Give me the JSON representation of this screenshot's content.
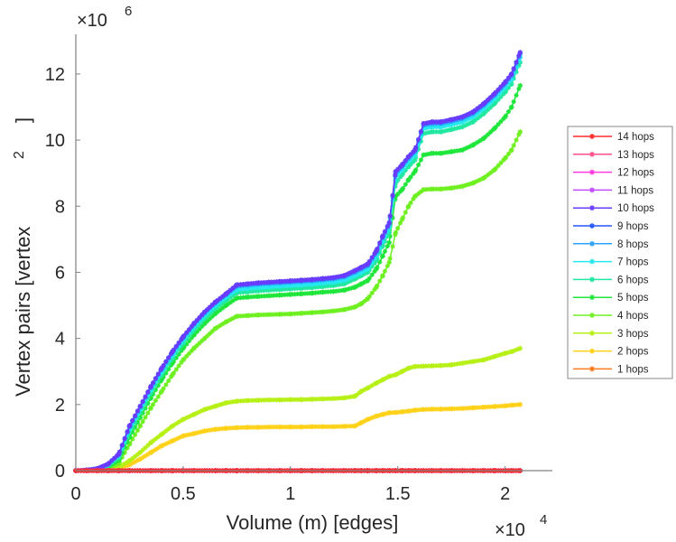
{
  "chart_data": {
    "type": "line",
    "title": "",
    "xlabel": "Volume (m) [edges]",
    "ylabel": "Vertex pairs [vertex",
    "ylabel_superscript": "2",
    "ylabel_close": "]",
    "x_exponent_label": "×10",
    "x_exponent": "4",
    "y_exponent_label": "×10",
    "y_exponent": "6",
    "xlim": [
      0,
      22200
    ],
    "ylim": [
      0,
      13200000
    ],
    "x_ticks": [
      0,
      5000,
      10000,
      15000,
      20000
    ],
    "x_tick_labels": [
      "0",
      "0.5",
      "1",
      "1.5",
      "2"
    ],
    "y_ticks": [
      0,
      2000000,
      4000000,
      6000000,
      8000000,
      10000000,
      12000000
    ],
    "y_tick_labels": [
      "0",
      "2",
      "4",
      "6",
      "8",
      "10",
      "12"
    ],
    "grid": false,
    "legend_position": "right-outside",
    "marker": "asterisk",
    "x": [
      0,
      500,
      1000,
      1500,
      2000,
      2500,
      3000,
      3500,
      4000,
      4500,
      5000,
      5500,
      6000,
      6500,
      7000,
      7500,
      8000,
      8500,
      9000,
      9500,
      10000,
      10500,
      11000,
      11500,
      12000,
      12500,
      13000,
      13300,
      13600,
      14000,
      14300,
      14600,
      14900,
      15200,
      15500,
      15800,
      16200,
      16600,
      17000,
      17500,
      18000,
      18500,
      19000,
      19500,
      20000,
      20300,
      20700
    ],
    "series": [
      {
        "name": "14 hops",
        "color": "#ff2b2b",
        "values": [
          0,
          0,
          0,
          0,
          0,
          0,
          0,
          0,
          0,
          0,
          0,
          0,
          0,
          0,
          0,
          0,
          0,
          0,
          0,
          0,
          0,
          0,
          0,
          0,
          0,
          0,
          0,
          0,
          0,
          0,
          0,
          0,
          0,
          0,
          0,
          0,
          0,
          0,
          0,
          0,
          0,
          0,
          0,
          0,
          0,
          0,
          0
        ]
      },
      {
        "name": "13 hops",
        "color": "#ff4f8a",
        "values": [
          0,
          0,
          0,
          0,
          0,
          0,
          0,
          0,
          0,
          0,
          0,
          0,
          0,
          0,
          0,
          0,
          0,
          0,
          0,
          0,
          0,
          0,
          0,
          0,
          0,
          0,
          0,
          0,
          0,
          0,
          0,
          0,
          0,
          0,
          0,
          0,
          0,
          0,
          0,
          0,
          0,
          0,
          0,
          0,
          0,
          0,
          0
        ]
      },
      {
        "name": "12 hops",
        "color": "#ff3be0",
        "values": [
          0,
          0,
          0,
          0,
          0,
          0,
          0,
          0,
          0,
          0,
          0,
          0,
          0,
          0,
          0,
          0,
          0,
          0,
          0,
          0,
          0,
          0,
          0,
          0,
          0,
          0,
          0,
          0,
          0,
          0,
          0,
          0,
          0,
          0,
          0,
          0,
          0,
          0,
          0,
          0,
          0,
          0,
          0,
          0,
          0,
          0,
          0
        ]
      },
      {
        "name": "11 hops",
        "color": "#c04bff",
        "values": [
          0,
          0,
          0,
          0,
          0,
          0,
          0,
          0,
          0,
          0,
          0,
          0,
          0,
          0,
          0,
          0,
          0,
          0,
          0,
          0,
          0,
          0,
          0,
          0,
          0,
          0,
          0,
          0,
          0,
          0,
          0,
          0,
          0,
          0,
          0,
          0,
          0,
          0,
          0,
          0,
          0,
          0,
          0,
          0,
          0,
          0,
          0
        ]
      },
      {
        "name": "10 hops",
        "color": "#6a3bff",
        "values": [
          0,
          20000,
          60000,
          200000,
          500000,
          1350000,
          1950000,
          2550000,
          3100000,
          3600000,
          4050000,
          4450000,
          4800000,
          5100000,
          5350000,
          5620000,
          5650000,
          5680000,
          5700000,
          5720000,
          5740000,
          5760000,
          5780000,
          5810000,
          5840000,
          5900000,
          6050000,
          6150000,
          6250000,
          6650000,
          7100000,
          7500000,
          9050000,
          9250000,
          9500000,
          9700000,
          10500000,
          10550000,
          10550000,
          10620000,
          10700000,
          10850000,
          11100000,
          11400000,
          11750000,
          12000000,
          12650000
        ]
      },
      {
        "name": "9 hops",
        "color": "#2456ff",
        "values": [
          0,
          20000,
          60000,
          200000,
          500000,
          1350000,
          1950000,
          2550000,
          3100000,
          3600000,
          4050000,
          4450000,
          4800000,
          5100000,
          5350000,
          5620000,
          5650000,
          5680000,
          5700000,
          5720000,
          5740000,
          5760000,
          5780000,
          5810000,
          5840000,
          5900000,
          6050000,
          6150000,
          6250000,
          6650000,
          7100000,
          7500000,
          9050000,
          9250000,
          9500000,
          9700000,
          10500000,
          10550000,
          10550000,
          10620000,
          10700000,
          10850000,
          11100000,
          11400000,
          11750000,
          12000000,
          12650000
        ]
      },
      {
        "name": "8 hops",
        "color": "#2aa3ff",
        "values": [
          0,
          20000,
          60000,
          195000,
          490000,
          1320000,
          1920000,
          2520000,
          3070000,
          3570000,
          4020000,
          4420000,
          4770000,
          5070000,
          5320000,
          5580000,
          5610000,
          5640000,
          5660000,
          5680000,
          5700000,
          5720000,
          5740000,
          5770000,
          5800000,
          5860000,
          6000000,
          6100000,
          6200000,
          6600000,
          7050000,
          7450000,
          9000000,
          9200000,
          9450000,
          9650000,
          10450000,
          10500000,
          10500000,
          10570000,
          10650000,
          10800000,
          11050000,
          11350000,
          11700000,
          11950000,
          12600000
        ]
      },
      {
        "name": "7 hops",
        "color": "#25e8f0",
        "values": [
          0,
          15000,
          50000,
          180000,
          450000,
          1250000,
          1850000,
          2450000,
          3000000,
          3500000,
          3950000,
          4350000,
          4700000,
          5000000,
          5250000,
          5480000,
          5510000,
          5540000,
          5560000,
          5580000,
          5600000,
          5620000,
          5640000,
          5670000,
          5700000,
          5760000,
          5900000,
          6000000,
          6100000,
          6500000,
          6950000,
          7350000,
          8900000,
          9100000,
          9350000,
          9550000,
          10350000,
          10400000,
          10400000,
          10470000,
          10550000,
          10700000,
          10950000,
          11250000,
          11600000,
          11850000,
          12500000
        ]
      },
      {
        "name": "6 hops",
        "color": "#20e8a0",
        "values": [
          0,
          12000,
          45000,
          160000,
          400000,
          1150000,
          1750000,
          2350000,
          2900000,
          3400000,
          3850000,
          4250000,
          4600000,
          4900000,
          5150000,
          5380000,
          5410000,
          5440000,
          5460000,
          5480000,
          5500000,
          5520000,
          5540000,
          5570000,
          5600000,
          5650000,
          5800000,
          5900000,
          6000000,
          6350000,
          6800000,
          7200000,
          8700000,
          8950000,
          9200000,
          9400000,
          10200000,
          10250000,
          10250000,
          10320000,
          10400000,
          10550000,
          10800000,
          11100000,
          11450000,
          11700000,
          12350000
        ]
      },
      {
        "name": "5 hops",
        "color": "#1fe63a",
        "values": [
          0,
          10000,
          35000,
          120000,
          320000,
          1000000,
          1600000,
          2200000,
          2750000,
          3250000,
          3700000,
          4100000,
          4450000,
          4750000,
          5000000,
          5220000,
          5250000,
          5270000,
          5290000,
          5310000,
          5330000,
          5350000,
          5370000,
          5400000,
          5420000,
          5460000,
          5550000,
          5650000,
          5750000,
          6100000,
          6500000,
          6900000,
          8300000,
          8500000,
          8800000,
          9050000,
          9550000,
          9600000,
          9600000,
          9650000,
          9700000,
          9850000,
          10050000,
          10350000,
          10700000,
          11000000,
          11650000
        ]
      },
      {
        "name": "4 hops",
        "color": "#6ef020",
        "values": [
          0,
          8000,
          25000,
          80000,
          220000,
          800000,
          1350000,
          1900000,
          2400000,
          2900000,
          3350000,
          3700000,
          4000000,
          4300000,
          4500000,
          4670000,
          4690000,
          4710000,
          4720000,
          4730000,
          4740000,
          4760000,
          4780000,
          4800000,
          4830000,
          4870000,
          4950000,
          5050000,
          5200000,
          5550000,
          5900000,
          6300000,
          7200000,
          7600000,
          8000000,
          8300000,
          8500000,
          8520000,
          8520000,
          8550000,
          8600000,
          8700000,
          8850000,
          9100000,
          9450000,
          9700000,
          10250000
        ]
      },
      {
        "name": "3 hops",
        "color": "#b6f016",
        "values": [
          0,
          5000,
          15000,
          40000,
          100000,
          300000,
          550000,
          850000,
          1100000,
          1350000,
          1550000,
          1700000,
          1850000,
          1950000,
          2050000,
          2100000,
          2120000,
          2130000,
          2140000,
          2140000,
          2150000,
          2150000,
          2160000,
          2170000,
          2180000,
          2200000,
          2250000,
          2400000,
          2500000,
          2650000,
          2750000,
          2850000,
          2900000,
          3000000,
          3100000,
          3150000,
          3160000,
          3170000,
          3180000,
          3200000,
          3250000,
          3300000,
          3350000,
          3450000,
          3550000,
          3600000,
          3700000
        ]
      },
      {
        "name": "2 hops",
        "color": "#ffd21a",
        "values": [
          0,
          3000,
          10000,
          25000,
          60000,
          180000,
          350000,
          550000,
          750000,
          900000,
          1050000,
          1120000,
          1200000,
          1250000,
          1280000,
          1300000,
          1310000,
          1310000,
          1320000,
          1320000,
          1320000,
          1320000,
          1330000,
          1330000,
          1330000,
          1340000,
          1350000,
          1450000,
          1550000,
          1650000,
          1700000,
          1750000,
          1760000,
          1780000,
          1800000,
          1830000,
          1850000,
          1860000,
          1860000,
          1870000,
          1880000,
          1900000,
          1920000,
          1940000,
          1960000,
          1980000,
          2000000
        ]
      },
      {
        "name": "1 hops",
        "color": "#ff7a1a",
        "values": [
          0,
          0,
          0,
          0,
          0,
          0,
          0,
          0,
          0,
          0,
          0,
          0,
          0,
          0,
          0,
          0,
          0,
          0,
          0,
          0,
          0,
          0,
          0,
          0,
          0,
          0,
          0,
          0,
          0,
          0,
          0,
          0,
          0,
          0,
          0,
          0,
          0,
          0,
          0,
          0,
          0,
          0,
          0,
          0,
          0,
          0,
          0
        ]
      }
    ]
  }
}
